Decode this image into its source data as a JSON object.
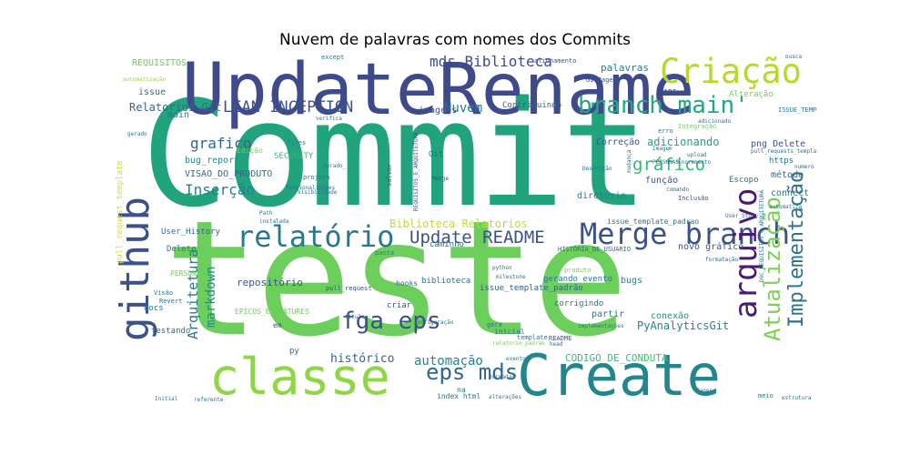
{
  "title": "Nuvem de palavras com nomes dos Commits",
  "chart_data": {
    "type": "wordcloud",
    "title": "Nuvem de palavras com nomes dos Commits",
    "colormap": "viridis",
    "background": "#ffffff",
    "words": [
      {
        "text": "Commit",
        "color": "#21a37d",
        "orientation": "horizontal"
      },
      {
        "text": "teste",
        "color": "#6ccf5c",
        "orientation": "horizontal"
      },
      {
        "text": "UpdateRename",
        "color": "#3e4a89",
        "orientation": "horizontal"
      },
      {
        "text": "Create",
        "color": "#23868d",
        "orientation": "horizontal"
      },
      {
        "text": "classe",
        "color": "#8ed644",
        "orientation": "horizontal"
      },
      {
        "text": "github",
        "color": "#3b518a",
        "orientation": "vertical"
      },
      {
        "text": "Criação",
        "color": "#b5d932",
        "orientation": "horizontal"
      },
      {
        "text": "Merge branch",
        "color": "#3b518a",
        "orientation": "horizontal"
      },
      {
        "text": "relatório",
        "color": "#2a788e",
        "orientation": "horizontal"
      },
      {
        "text": "branch main'",
        "color": "#22a884",
        "orientation": "horizontal"
      },
      {
        "text": "arquivo",
        "color": "#481b6d",
        "orientation": "vertical"
      },
      {
        "text": "Atualização",
        "color": "#7ad151",
        "orientation": "vertical"
      },
      {
        "text": "Implementação",
        "color": "#2c728e",
        "orientation": "vertical"
      },
      {
        "text": "fga eps",
        "color": "#3b518a",
        "orientation": "horizontal"
      },
      {
        "text": "eps mds",
        "color": "#30688e",
        "orientation": "horizontal"
      },
      {
        "text": "Update README",
        "color": "#3b518a",
        "orientation": "horizontal"
      },
      {
        "text": "LEAN INCEPTION",
        "color": "#3b528b",
        "orientation": "horizontal"
      },
      {
        "text": "mds Biblioteca",
        "color": "#3e4a89",
        "orientation": "horizontal"
      },
      {
        "text": "Inserção",
        "color": "#26818e",
        "orientation": "horizontal"
      },
      {
        "text": "grafico",
        "color": "#33638d",
        "orientation": "horizontal"
      },
      {
        "text": "gráfico",
        "color": "#35b779",
        "orientation": "horizontal"
      },
      {
        "text": "Arquitetura",
        "color": "#2a788e",
        "orientation": "vertical"
      },
      {
        "text": "markdown",
        "color": "#23898e",
        "orientation": "vertical"
      },
      {
        "text": "automação",
        "color": "#25848e",
        "orientation": "horizontal"
      },
      {
        "text": "Nuvem",
        "color": "#2a778e",
        "orientation": "horizontal"
      },
      {
        "text": "histórico",
        "color": "#33638d",
        "orientation": "horizontal"
      },
      {
        "text": "Biblioteca Relatorios",
        "color": "#bddf26",
        "orientation": "horizontal"
      },
      {
        "text": "adicionando",
        "color": "#20a386",
        "orientation": "horizontal"
      },
      {
        "text": "CODIGO_DE_CONDUTA",
        "color": "#3fbc73",
        "orientation": "horizontal"
      },
      {
        "text": "PyAnalyticsGit",
        "color": "#25838e",
        "orientation": "horizontal"
      },
      {
        "text": "Relatorios Git",
        "color": "#31688e",
        "orientation": "horizontal"
      },
      {
        "text": "repositório",
        "color": "#39568c",
        "orientation": "horizontal"
      },
      {
        "text": "palavras",
        "color": "#2a788e",
        "orientation": "horizontal"
      },
      {
        "text": "imagens",
        "color": "#3b528b",
        "orientation": "horizontal"
      },
      {
        "text": "bug_report",
        "color": "#238a8d",
        "orientation": "horizontal"
      },
      {
        "text": "VISAO_DO_PRODUTO",
        "color": "#31688e",
        "orientation": "horizontal"
      },
      {
        "text": "png Delete",
        "color": "#3b528b",
        "orientation": "horizontal"
      },
      {
        "text": "issue",
        "color": "#2d708e",
        "orientation": "horizontal"
      },
      {
        "text": "main",
        "color": "#2d708e",
        "orientation": "horizontal"
      },
      {
        "text": "REQUISITOS",
        "color": "#6ece58",
        "orientation": "horizontal"
      },
      {
        "text": "Correção",
        "color": "#3b528b",
        "orientation": "horizontal"
      },
      {
        "text": "função",
        "color": "#3b528b",
        "orientation": "horizontal"
      },
      {
        "text": "diretório",
        "color": "#2a788e",
        "orientation": "horizontal"
      },
      {
        "text": "https",
        "color": "#2c728e",
        "orientation": "horizontal"
      },
      {
        "text": "método",
        "color": "#30688e",
        "orientation": "horizontal"
      },
      {
        "text": "connect",
        "color": "#2c728e",
        "orientation": "horizontal"
      },
      {
        "text": "novo gráfico",
        "color": "#3b528b",
        "orientation": "horizontal"
      },
      {
        "text": "conexão",
        "color": "#21918c",
        "orientation": "horizontal"
      },
      {
        "text": "bugs",
        "color": "#26828e",
        "orientation": "horizontal"
      },
      {
        "text": "partir",
        "color": "#2c728e",
        "orientation": "horizontal"
      },
      {
        "text": "corrigindo",
        "color": "#2c728e",
        "orientation": "horizontal"
      },
      {
        "text": "biblioteca",
        "color": "#2c728e",
        "orientation": "horizontal"
      },
      {
        "text": "gerando evento",
        "color": "#2a788e",
        "orientation": "horizontal"
      },
      {
        "text": "issue_template_padrão",
        "color": "#33638d",
        "orientation": "horizontal"
      },
      {
        "text": "issue_template_padrao",
        "color": "#2c728e",
        "orientation": "horizontal"
      },
      {
        "text": "caminho",
        "color": "#31688e",
        "orientation": "horizontal"
      },
      {
        "text": "User_History",
        "color": "#31688e",
        "orientation": "horizontal"
      },
      {
        "text": "Delete",
        "color": "#2a788e",
        "orientation": "horizontal"
      },
      {
        "text": "PERSONAS",
        "color": "#6ece58",
        "orientation": "horizontal"
      },
      {
        "text": "EPICOS_E_FEATURES",
        "color": "#6ece58",
        "orientation": "horizontal"
      },
      {
        "text": "testando",
        "color": "#31688e",
        "orientation": "horizontal"
      },
      {
        "text": "docs",
        "color": "#2a788e",
        "orientation": "horizontal"
      },
      {
        "text": "py",
        "color": "#31688e",
        "orientation": "horizontal"
      },
      {
        "text": "index html",
        "color": "#2c728e",
        "orientation": "horizontal"
      },
      {
        "text": "na",
        "color": "#2c728e",
        "orientation": "horizontal"
      },
      {
        "text": "SECURITY",
        "color": "#35b779",
        "orientation": "horizontal"
      },
      {
        "text": "Edição",
        "color": "#6ece58",
        "orientation": "horizontal"
      },
      {
        "text": "Git",
        "color": "#31688e",
        "orientation": "horizontal"
      },
      {
        "text": "Contribuindo",
        "color": "#33638d",
        "orientation": "horizontal"
      },
      {
        "text": "Escopo",
        "color": "#2c728e",
        "orientation": "horizontal"
      },
      {
        "text": "Alteração",
        "color": "#6ece58",
        "orientation": "horizontal"
      },
      {
        "text": "API",
        "color": "#3b528b",
        "orientation": "horizontal"
      },
      {
        "text": "GitPages",
        "color": "#3b528b",
        "orientation": "horizontal"
      },
      {
        "text": "Inclusão",
        "color": "#3b528b",
        "orientation": "horizontal"
      },
      {
        "text": "salvar",
        "color": "#3b528b",
        "orientation": "vertical"
      },
      {
        "text": "hooks",
        "color": "#31688e",
        "orientation": "horizontal"
      },
      {
        "text": "criar",
        "color": "#3b528b",
        "orientation": "horizontal"
      },
      {
        "text": "em",
        "color": "#3b528b",
        "orientation": "horizontal"
      },
      {
        "text": "pull_request_template",
        "color": "#d2e21b",
        "orientation": "vertical"
      },
      {
        "text": "ISSUE_TEMPLATE",
        "color": "#2c728e",
        "orientation": "horizontal"
      },
      {
        "text": "template",
        "color": "#2c728e",
        "orientation": "horizontal"
      },
      {
        "text": "inicial",
        "color": "#2c728e",
        "orientation": "horizontal"
      },
      {
        "text": "gera",
        "color": "#2c728e",
        "orientation": "horizontal"
      },
      {
        "text": "meio",
        "color": "#2c728e",
        "orientation": "horizontal"
      },
      {
        "text": "HISTÓRIA_DE_USUARIO",
        "color": "#31688e",
        "orientation": "horizontal"
      },
      {
        "text": "README",
        "color": "#3b528b",
        "orientation": "horizontal"
      },
      {
        "text": "alinhamento",
        "color": "#3b528b",
        "orientation": "horizontal"
      },
      {
        "text": "except",
        "color": "#2c728e",
        "orientation": "horizontal"
      },
      {
        "text": "projeto",
        "color": "#2c728e",
        "orientation": "horizontal"
      },
      {
        "text": "Visão",
        "color": "#2c728e",
        "orientation": "horizontal"
      },
      {
        "text": "Revert",
        "color": "#2c728e",
        "orientation": "horizontal"
      },
      {
        "text": "automatização",
        "color": "#8ed644",
        "orientation": "horizontal"
      },
      {
        "text": "REQUISITOS_E_ARQUITETURA",
        "color": "#3b528b",
        "orientation": "vertical"
      },
      {
        "text": "DOC_REQUISITOS_E_ARQUITETURA",
        "color": "#2c728e",
        "orientation": "vertical"
      },
      {
        "text": "Merge",
        "color": "#3b528b",
        "orientation": "horizontal"
      },
      {
        "text": "pasta",
        "color": "#2c728e",
        "orientation": "horizontal"
      },
      {
        "text": "python",
        "color": "#2c728e",
        "orientation": "horizontal"
      },
      {
        "text": "milestone",
        "color": "#2c728e",
        "orientation": "horizontal"
      },
      {
        "text": "pull_request",
        "color": "#3b528b",
        "orientation": "horizontal"
      },
      {
        "text": "Integração",
        "color": "#6ece58",
        "orientation": "horizontal"
      },
      {
        "text": "User_Story",
        "color": "#2c728e",
        "orientation": "horizontal"
      },
      {
        "text": "formatação",
        "color": "#2c728e",
        "orientation": "horizontal"
      },
      {
        "text": "Initial",
        "color": "#2c728e",
        "orientation": "horizontal"
      },
      {
        "text": "estrutura",
        "color": "#2c728e",
        "orientation": "horizontal"
      },
      {
        "text": "automatiza",
        "color": "#2c728e",
        "orientation": "horizontal"
      },
      {
        "text": "erro",
        "color": "#2c728e",
        "orientation": "horizontal"
      },
      {
        "text": "produto",
        "color": "#6ece58",
        "orientation": "horizontal"
      },
      {
        "text": "implementações",
        "color": "#2c728e",
        "orientation": "horizontal"
      },
      {
        "text": "configuração",
        "color": "#2c728e",
        "orientation": "horizontal"
      },
      {
        "text": "alterações",
        "color": "#2c728e",
        "orientation": "horizontal"
      },
      {
        "text": "referente",
        "color": "#2c728e",
        "orientation": "horizontal"
      },
      {
        "text": "busca",
        "color": "#2c728e",
        "orientation": "horizontal"
      },
      {
        "text": "numero",
        "color": "#2c728e",
        "orientation": "horizontal"
      },
      {
        "text": "comando",
        "color": "#2c728e",
        "orientation": "horizontal"
      },
      {
        "text": "Pages",
        "color": "#2c728e",
        "orientation": "horizontal"
      },
      {
        "text": "files",
        "color": "#2c728e",
        "orientation": "horizontal"
      },
      {
        "text": "verifica",
        "color": "#2c728e",
        "orientation": "horizontal"
      },
      {
        "text": "adicionado",
        "color": "#2c728e",
        "orientation": "horizontal"
      },
      {
        "text": "upload",
        "color": "#2c728e",
        "orientation": "horizontal"
      },
      {
        "text": "Descrição",
        "color": "#2c728e",
        "orientation": "horizontal"
      },
      {
        "text": "mudança",
        "color": "#2c728e",
        "orientation": "vertical"
      },
      {
        "text": "título",
        "color": "#2c728e",
        "orientation": "horizontal"
      },
      {
        "text": "gerado",
        "color": "#2c728e",
        "orientation": "horizontal"
      },
      {
        "text": "instalada",
        "color": "#2c728e",
        "orientation": "horizontal"
      },
      {
        "text": "Path",
        "color": "#2c728e",
        "orientation": "horizontal"
      },
      {
        "text": "evento",
        "color": "#2c728e",
        "orientation": "horizontal"
      },
      {
        "text": "head",
        "color": "#2c728e",
        "orientation": "horizontal"
      },
      {
        "text": "funcionalidades",
        "color": "#2c728e",
        "orientation": "horizontal"
      },
      {
        "text": "Incremento",
        "color": "#2c728e",
        "orientation": "horizontal"
      },
      {
        "text": "Imagem",
        "color": "#2c728e",
        "orientation": "horizontal"
      },
      {
        "text": "pull_requests_template",
        "color": "#2c728e",
        "orientation": "horizontal"
      },
      {
        "text": "PERSONAS_",
        "color": "#2c728e",
        "orientation": "horizontal"
      },
      {
        "text": "relatorio_padrao",
        "color": "#6ece58",
        "orientation": "horizontal"
      },
      {
        "text": "Jornadas",
        "color": "#2c728e",
        "orientation": "horizontal"
      },
      {
        "text": "gerado_",
        "color": "#2c728e",
        "orientation": "horizontal"
      },
      {
        "text": "Visibilidade",
        "color": "#2c728e",
        "orientation": "horizontal"
      }
    ]
  }
}
